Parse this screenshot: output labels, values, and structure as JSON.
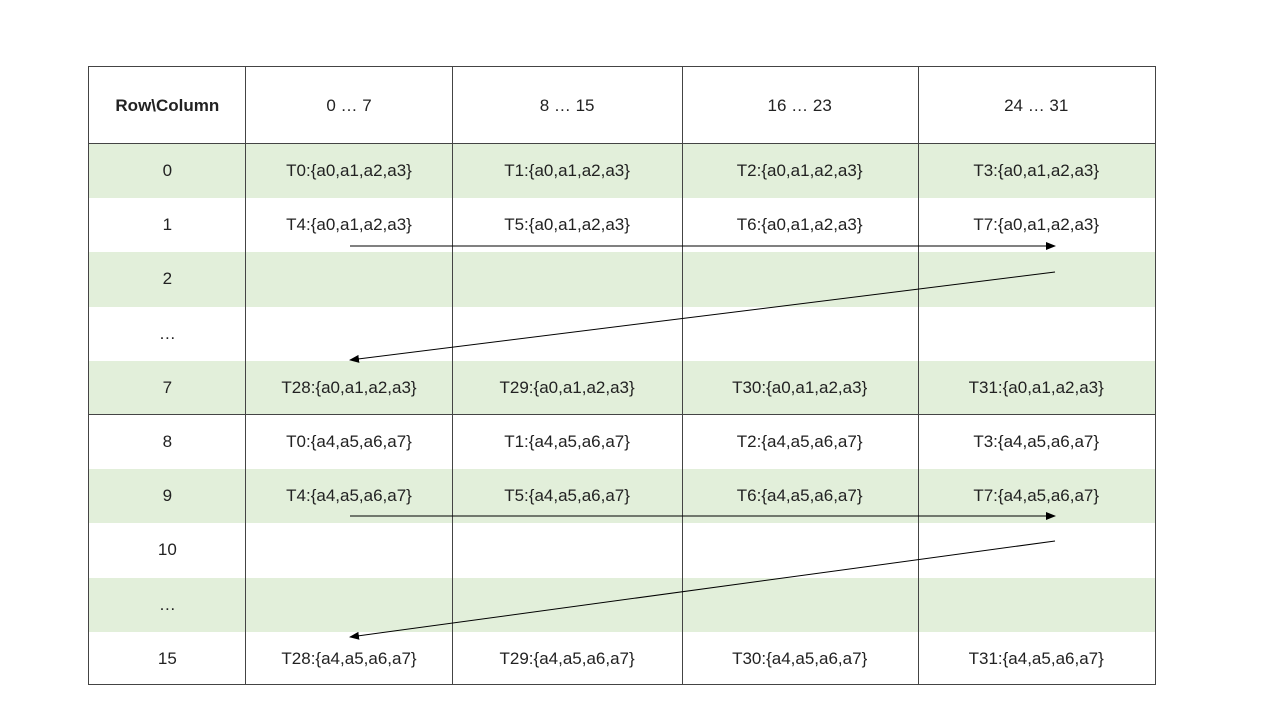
{
  "header": [
    "Row\\Column",
    "0 … 7",
    "8 … 15",
    "16 … 23",
    "24 … 31"
  ],
  "rows": [
    {
      "label": "0",
      "cells": [
        "T0:{a0,a1,a2,a3}",
        "T1:{a0,a1,a2,a3}",
        "T2:{a0,a1,a2,a3}",
        "T3:{a0,a1,a2,a3}"
      ],
      "shaded": true
    },
    {
      "label": "1",
      "cells": [
        "T4:{a0,a1,a2,a3}",
        "T5:{a0,a1,a2,a3}",
        "T6:{a0,a1,a2,a3}",
        "T7:{a0,a1,a2,a3}"
      ],
      "shaded": false
    },
    {
      "label": "2",
      "cells": [
        "",
        "",
        "",
        ""
      ],
      "shaded": true
    },
    {
      "label": "…",
      "cells": [
        "",
        "",
        "",
        ""
      ],
      "shaded": false
    },
    {
      "label": "7",
      "cells": [
        "T28:{a0,a1,a2,a3}",
        "T29:{a0,a1,a2,a3}",
        "T30:{a0,a1,a2,a3}",
        "T31:{a0,a1,a2,a3}"
      ],
      "shaded": true
    },
    {
      "label": "8",
      "cells": [
        "T0:{a4,a5,a6,a7}",
        "T1:{a4,a5,a6,a7}",
        "T2:{a4,a5,a6,a7}",
        "T3:{a4,a5,a6,a7}"
      ],
      "shaded": false
    },
    {
      "label": "9",
      "cells": [
        "T4:{a4,a5,a6,a7}",
        "T5:{a4,a5,a6,a7}",
        "T6:{a4,a5,a6,a7}",
        "T7:{a4,a5,a6,a7}"
      ],
      "shaded": true
    },
    {
      "label": "10",
      "cells": [
        "",
        "",
        "",
        ""
      ],
      "shaded": false
    },
    {
      "label": "…",
      "cells": [
        "",
        "",
        "",
        ""
      ],
      "shaded": true
    },
    {
      "label": "15",
      "cells": [
        "T28:{a4,a5,a6,a7}",
        "T29:{a4,a5,a6,a7}",
        "T30:{a4,a5,a6,a7}",
        "T31:{a4,a5,a6,a7}"
      ],
      "shaded": false
    }
  ],
  "colors": {
    "shaded": "#e2efda",
    "border": "#444444"
  }
}
